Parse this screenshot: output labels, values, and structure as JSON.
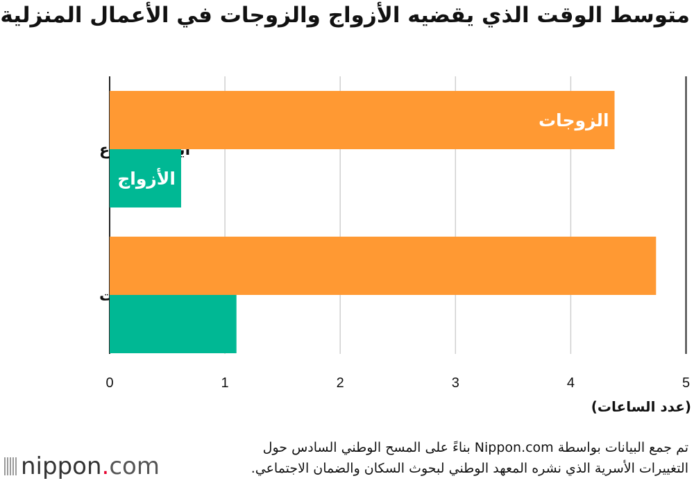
{
  "chart_data": {
    "type": "bar",
    "orientation": "horizontal",
    "title": "متوسط الوقت الذي يقضيه الأزواج والزوجات في الأعمال المنزلية",
    "xlabel": "(عدد الساعات)",
    "categories": [
      "أيام الأسبوع",
      "العطلات"
    ],
    "series": [
      {
        "name": "الزوجات",
        "values": [
          4.38,
          4.74
        ],
        "color": "#FF9933"
      },
      {
        "name": "الأزواج",
        "values": [
          0.62,
          1.1
        ],
        "color": "#00B894"
      }
    ],
    "xlim": [
      0,
      5
    ],
    "xticks": [
      "0",
      "1",
      "2",
      "3",
      "4",
      "5"
    ],
    "grid": true,
    "legend": "inline-labels"
  },
  "source": {
    "line1": "تم جمع البيانات بواسطة Nippon.com بناءً على المسح الوطني السادس حول",
    "line2": "التغييرات الأسرية الذي نشره المعهد الوطني لبحوث السكان والضمان الاجتماعي."
  },
  "logo": {
    "name": "nippon",
    "dot": ".",
    "suffix": "com"
  }
}
